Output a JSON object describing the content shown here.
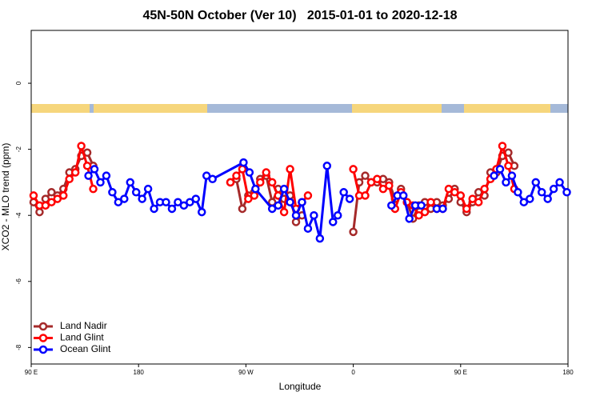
{
  "chart_data": {
    "type": "line",
    "title": "45N-50N October (Ver 10)   2015-01-01 to 2020-12-18",
    "x_label": "Longitude",
    "y_label": "XCO2 - MLO trend (ppm)",
    "xlim": [
      90,
      540
    ],
    "ylim": [
      -8.5,
      1.6
    ],
    "xticks": [
      {
        "value": 90,
        "label": "90 E"
      },
      {
        "value": 180,
        "label": "180"
      },
      {
        "value": 270,
        "label": "90 W"
      },
      {
        "value": 360,
        "label": "0"
      },
      {
        "value": 450,
        "label": "90 E"
      },
      {
        "value": 540,
        "label": "180"
      }
    ],
    "yticks": [
      0,
      -2,
      -4,
      -6,
      -8
    ],
    "legend": "bottom-left",
    "series": [
      {
        "name": "Land Nadir",
        "color": "#a52a2a",
        "x": [
          92,
          97,
          102,
          107,
          112,
          117,
          122,
          127,
          132,
          137,
          142,
          147,
          257,
          262,
          267,
          272,
          277,
          282,
          287,
          292,
          297,
          302,
          307,
          312,
          317,
          322,
          360,
          365,
          370,
          375,
          380,
          385,
          390,
          395,
          400,
          405,
          410,
          415,
          420,
          425,
          430,
          435,
          440,
          445,
          450,
          455,
          460,
          465,
          470,
          475,
          480,
          485,
          490,
          495
        ],
        "values": [
          -3.6,
          -3.9,
          -3.5,
          -3.3,
          -3.4,
          -3.2,
          -2.7,
          -2.6,
          -2.2,
          -2.1,
          -2.5,
          null,
          -3.0,
          -2.9,
          -3.8,
          -3.4,
          -3.3,
          -2.9,
          -2.8,
          -3.6,
          -3.2,
          -3.5,
          -3.4,
          -4.2,
          -4.0,
          null,
          -4.5,
          -3.0,
          -2.8,
          -3.0,
          -3.0,
          -2.9,
          -3.0,
          -3.5,
          -3.2,
          -3.6,
          -4.1,
          -3.7,
          -3.6,
          -3.8,
          -3.6,
          -3.7,
          -3.5,
          -3.2,
          -3.6,
          -3.9,
          -3.6,
          -3.3,
          -3.4,
          -2.7,
          -2.7,
          -2.2,
          -2.1,
          -2.5
        ]
      },
      {
        "name": "Land Glint",
        "color": "#ff0000",
        "x": [
          92,
          97,
          102,
          107,
          112,
          117,
          122,
          127,
          132,
          137,
          142,
          147,
          257,
          262,
          267,
          272,
          277,
          282,
          287,
          292,
          297,
          302,
          307,
          312,
          317,
          322,
          340,
          360,
          365,
          370,
          375,
          380,
          385,
          390,
          395,
          400,
          405,
          410,
          415,
          420,
          425,
          430,
          435,
          440,
          445,
          450,
          455,
          460,
          465,
          470,
          475,
          480,
          485,
          490,
          495
        ],
        "values": [
          -3.4,
          -3.7,
          -3.7,
          -3.6,
          -3.5,
          -3.4,
          -2.9,
          -2.7,
          -1.9,
          -2.5,
          -3.2,
          null,
          -3.0,
          -2.8,
          -2.6,
          -3.5,
          -3.4,
          -3.0,
          -2.7,
          -3.0,
          -3.4,
          -3.9,
          -2.6,
          -3.8,
          -3.6,
          -3.4,
          null,
          -2.6,
          -3.4,
          -3.4,
          -3.0,
          -2.9,
          -3.2,
          -3.1,
          -3.8,
          -3.3,
          -3.6,
          -3.7,
          -4.0,
          -3.9,
          -3.6,
          -3.8,
          -3.8,
          -3.2,
          -3.3,
          -3.4,
          -3.8,
          -3.5,
          -3.6,
          -3.2,
          -2.9,
          -2.6,
          -1.9,
          -2.5,
          -3.2
        ]
      },
      {
        "name": "Ocean Glint",
        "color": "#0000ff",
        "x": [
          138,
          143,
          148,
          153,
          158,
          163,
          168,
          173,
          178,
          183,
          188,
          193,
          198,
          203,
          208,
          213,
          218,
          223,
          228,
          233,
          237,
          242,
          268,
          273,
          278,
          292,
          297,
          302,
          307,
          312,
          317,
          322,
          327,
          332,
          338,
          343,
          347,
          352,
          357,
          375,
          392,
          397,
          402,
          407,
          412,
          417,
          423,
          430,
          435,
          450,
          478,
          483,
          488,
          493,
          498,
          503,
          508,
          513,
          518,
          523,
          528,
          533,
          539
        ],
        "values": [
          -2.8,
          -2.6,
          -3.0,
          -2.8,
          -3.3,
          -3.6,
          -3.5,
          -3.0,
          -3.3,
          -3.5,
          -3.2,
          -3.8,
          -3.6,
          -3.6,
          -3.8,
          -3.6,
          -3.7,
          -3.6,
          -3.5,
          -3.9,
          -2.8,
          -2.9,
          -2.4,
          -2.7,
          -3.2,
          -3.8,
          -3.7,
          -3.2,
          -3.6,
          -4.0,
          -3.6,
          -4.4,
          -4.0,
          -4.7,
          -2.5,
          -4.2,
          -4.0,
          -3.3,
          -3.5,
          null,
          -3.7,
          -3.4,
          -3.4,
          -4.1,
          -3.7,
          -3.7,
          null,
          -3.8,
          -3.8,
          null,
          -2.8,
          -2.6,
          -3.0,
          -2.8,
          -3.3,
          -3.6,
          -3.5,
          -3.0,
          -3.3,
          -3.5,
          -3.2,
          -3.0,
          -3.3
        ]
      }
    ]
  }
}
